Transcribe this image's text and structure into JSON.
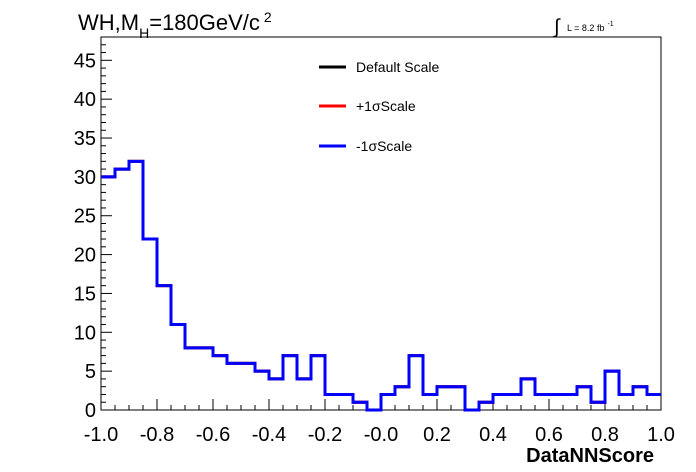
{
  "chart_data": {
    "type": "line",
    "title_main": "WH,M",
    "title_sub": "H",
    "title_rest": "=180GeV/c",
    "title_sup": "2",
    "lumi_label": "L = 8.2 fb",
    "lumi_sup": "-1",
    "xlabel": "DataNNScore",
    "ylabel": "",
    "xlim": [
      -1.0,
      1.0
    ],
    "ylim": [
      0,
      48
    ],
    "x_ticks": [
      "-1.0",
      "-0.8",
      "-0.6",
      "-0.4",
      "-0.2",
      "-0.0",
      "0.2",
      "0.4",
      "0.6",
      "0.8",
      "1.0"
    ],
    "y_ticks": [
      "0",
      "5",
      "10",
      "15",
      "20",
      "25",
      "30",
      "35",
      "40",
      "45"
    ],
    "bin_edges_start": -1.0,
    "bin_width": 0.05,
    "legend_position": "top-center",
    "series": [
      {
        "name": "Default Scale",
        "color": "#000000",
        "values": [
          30,
          31,
          32,
          22,
          16,
          11,
          8,
          8,
          7,
          6,
          6,
          5,
          4,
          7,
          4,
          7,
          2,
          2,
          1,
          0,
          2,
          3,
          7,
          2,
          3,
          3,
          0,
          1,
          2,
          2,
          4,
          2,
          2,
          2,
          3,
          1,
          5,
          2,
          3,
          2
        ]
      },
      {
        "name": "+1σScale",
        "color": "#ff0000",
        "values": [
          30,
          31,
          32,
          22,
          16,
          11,
          8,
          8,
          7,
          6,
          6,
          5,
          4,
          7,
          4,
          7,
          2,
          2,
          1,
          0,
          2,
          3,
          7,
          2,
          3,
          3,
          0,
          1,
          2,
          2,
          4,
          2,
          2,
          2,
          3,
          1,
          5,
          2,
          3,
          2
        ]
      },
      {
        "name": "-1σScale",
        "color": "#0000ff",
        "values": [
          30,
          31,
          32,
          22,
          16,
          11,
          8,
          8,
          7,
          6,
          6,
          5,
          4,
          7,
          4,
          7,
          2,
          2,
          1,
          0,
          2,
          3,
          7,
          2,
          3,
          3,
          0,
          1,
          2,
          2,
          4,
          2,
          2,
          2,
          3,
          1,
          5,
          2,
          3,
          2
        ]
      }
    ]
  }
}
